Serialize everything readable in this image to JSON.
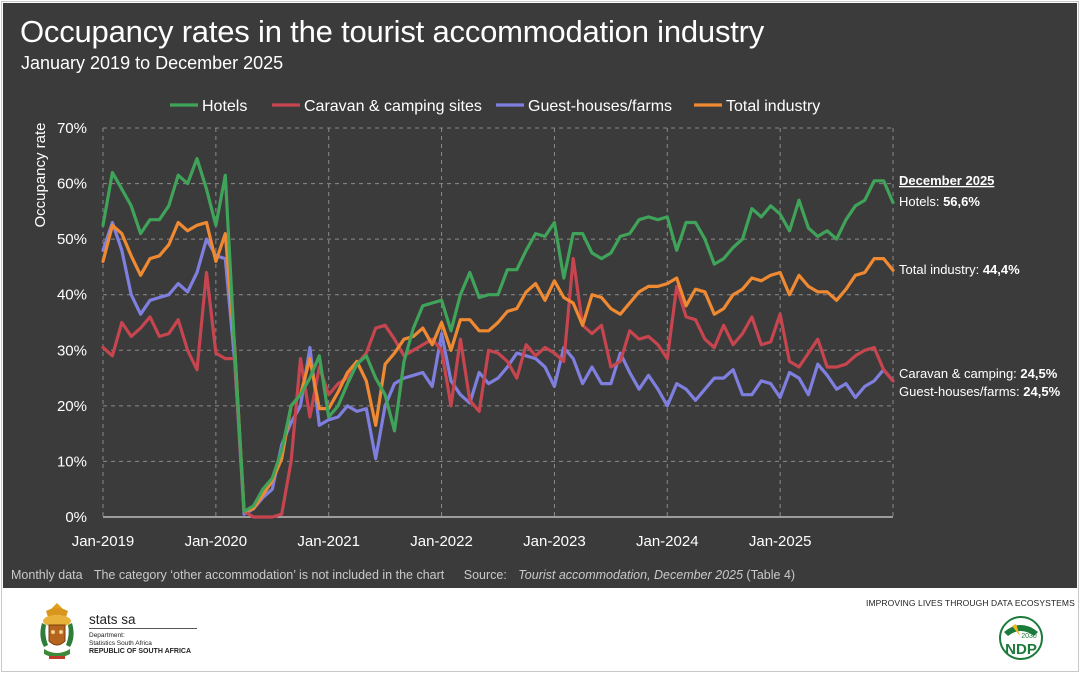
{
  "header": {
    "title": "Occupancy rates in the tourist accommodation industry",
    "subtitle": "January 2019 to December 2025"
  },
  "notes": {
    "monthly": "Monthly data",
    "exclusion": "The category ‘other accommodation’ is not included in the chart",
    "source_prefix": "Source: ",
    "source_title": "Tourist accommodation, December 2025",
    "source_suffix": " (Table 4)"
  },
  "footer": {
    "tagline": "IMPROVING LIVES THROUGH DATA ECOSYSTEMS",
    "org_name": "stats sa",
    "dept_line1": "Department:",
    "dept_line2": "Statistics South Africa",
    "dept_line3": "REPUBLIC OF SOUTH AFRICA",
    "ndp_label": "NDP",
    "ndp_year": "2030"
  },
  "colors": {
    "hotels": "#3fa35a",
    "caravan": "#c7454f",
    "guest": "#7f7fe0",
    "total": "#ef8a32",
    "background": "#3b3b3b"
  },
  "chart_data": {
    "type": "line",
    "ylabel": "Occupancy rate",
    "ylim": [
      0,
      70
    ],
    "yticks": [
      "0%",
      "10%",
      "20%",
      "30%",
      "40%",
      "50%",
      "60%",
      "70%"
    ],
    "xticks": [
      "Jan-2019",
      "Jan-2020",
      "Jan-2021",
      "Jan-2022",
      "Jan-2023",
      "Jan-2024",
      "Jan-2025"
    ],
    "grid": true,
    "legend_position": "top",
    "series": [
      {
        "name": "Hotels",
        "color": "#3fa35a",
        "values": [
          52.5,
          62.0,
          59.0,
          56.0,
          51.0,
          53.5,
          53.5,
          56.0,
          61.5,
          60.0,
          64.5,
          59.0,
          52.5,
          61.5,
          30.0,
          1.0,
          2.0,
          5.0,
          7.0,
          12.0,
          20.0,
          22.0,
          25.0,
          29.0,
          18.0,
          20.0,
          24.0,
          27.5,
          29.0,
          25.0,
          22.0,
          15.5,
          28.0,
          34.0,
          38.0,
          38.5,
          39.0,
          33.5,
          40.0,
          44.0,
          39.5,
          40.0,
          40.0,
          44.5,
          44.5,
          48.0,
          51.0,
          50.5,
          53.0,
          43.0,
          51.0,
          51.0,
          47.5,
          46.5,
          47.5,
          50.5,
          51.0,
          53.5,
          54.0,
          53.5,
          54.0,
          48.0,
          53.0,
          53.0,
          50.0,
          45.5,
          46.5,
          48.5,
          50.0,
          55.5,
          54.0,
          56.0,
          54.5,
          51.5,
          57.0,
          52.0,
          50.5,
          51.5,
          50.0,
          53.5,
          56.0,
          57.0,
          60.5,
          60.5,
          56.6
        ]
      },
      {
        "name": "Caravan & camping sites",
        "color": "#c7454f",
        "values": [
          30.5,
          29.0,
          35.0,
          32.5,
          34.0,
          36.0,
          32.5,
          33.0,
          35.5,
          30.0,
          26.5,
          44.0,
          29.5,
          28.5,
          28.5,
          1.0,
          0.0,
          0.0,
          0.0,
          0.5,
          10.0,
          28.5,
          18.0,
          27.0,
          22.0,
          24.0,
          25.0,
          27.5,
          29.5,
          34.0,
          34.5,
          32.0,
          29.0,
          30.0,
          31.0,
          32.0,
          30.0,
          20.0,
          32.0,
          21.0,
          19.0,
          30.0,
          29.5,
          28.0,
          25.0,
          31.0,
          29.0,
          30.5,
          29.5,
          28.0,
          46.5,
          34.5,
          33.0,
          34.5,
          27.0,
          28.0,
          33.5,
          32.0,
          32.5,
          31.0,
          28.5,
          41.5,
          36.0,
          35.5,
          32.0,
          30.5,
          34.5,
          31.0,
          33.0,
          36.0,
          31.0,
          31.5,
          36.5,
          28.0,
          27.0,
          29.5,
          32.0,
          27.0,
          27.0,
          27.5,
          29.0,
          30.0,
          30.5,
          26.5,
          24.5
        ]
      },
      {
        "name": "Guest-houses/farms",
        "color": "#7f7fe0",
        "values": [
          48.0,
          53.0,
          48.0,
          40.0,
          36.5,
          39.0,
          39.5,
          40.0,
          42.0,
          40.5,
          44.0,
          50.0,
          47.0,
          46.5,
          28.0,
          0.5,
          1.5,
          3.5,
          5.0,
          13.0,
          17.0,
          20.0,
          30.5,
          16.5,
          17.5,
          18.0,
          20.0,
          19.0,
          19.5,
          10.5,
          20.0,
          24.0,
          25.0,
          25.5,
          26.0,
          23.5,
          33.0,
          24.5,
          22.0,
          20.5,
          26.0,
          24.0,
          25.0,
          27.0,
          29.5,
          29.0,
          28.5,
          27.0,
          23.5,
          30.5,
          28.5,
          24.0,
          27.0,
          24.0,
          24.0,
          29.5,
          26.0,
          23.0,
          25.5,
          23.0,
          20.0,
          24.0,
          23.0,
          21.0,
          23.0,
          25.0,
          25.0,
          26.5,
          22.0,
          22.0,
          24.5,
          24.0,
          21.5,
          26.0,
          25.0,
          22.0,
          27.5,
          25.5,
          23.0,
          24.0,
          21.5,
          23.5,
          24.5,
          26.5,
          24.5
        ]
      },
      {
        "name": "Total industry",
        "color": "#ef8a32",
        "values": [
          46.0,
          52.5,
          51.0,
          47.0,
          43.5,
          46.5,
          47.0,
          49.0,
          53.0,
          51.5,
          52.5,
          53.0,
          46.0,
          51.0,
          30.5,
          1.0,
          1.5,
          4.0,
          6.5,
          10.5,
          20.0,
          22.0,
          28.5,
          19.5,
          19.5,
          22.5,
          26.0,
          28.0,
          24.5,
          16.5,
          27.5,
          29.5,
          32.0,
          32.5,
          34.0,
          31.0,
          35.0,
          30.0,
          35.5,
          35.5,
          33.5,
          33.5,
          35.0,
          37.0,
          37.5,
          40.5,
          42.0,
          39.0,
          42.5,
          39.5,
          38.5,
          34.5,
          40.0,
          39.5,
          37.5,
          36.5,
          38.5,
          40.5,
          41.5,
          41.5,
          42.0,
          43.0,
          38.0,
          41.0,
          40.5,
          36.5,
          37.5,
          40.0,
          41.0,
          43.0,
          42.5,
          43.5,
          44.0,
          40.0,
          43.5,
          41.5,
          40.5,
          40.5,
          39.0,
          41.0,
          43.5,
          44.0,
          46.5,
          46.5,
          44.4
        ]
      }
    ],
    "end_labels": [
      {
        "id": "dec",
        "text": "December 2025",
        "bold": true,
        "underline": true
      },
      {
        "id": "hotels",
        "text": "Hotels: ",
        "value": "56,6%"
      },
      {
        "id": "total",
        "text": "Total industry: ",
        "value": "44,4%"
      },
      {
        "id": "caravan",
        "text": "Caravan & camping: ",
        "value": "24,5%"
      },
      {
        "id": "guest",
        "text": "Guest-houses/farms: ",
        "value": "24,5%"
      }
    ]
  }
}
